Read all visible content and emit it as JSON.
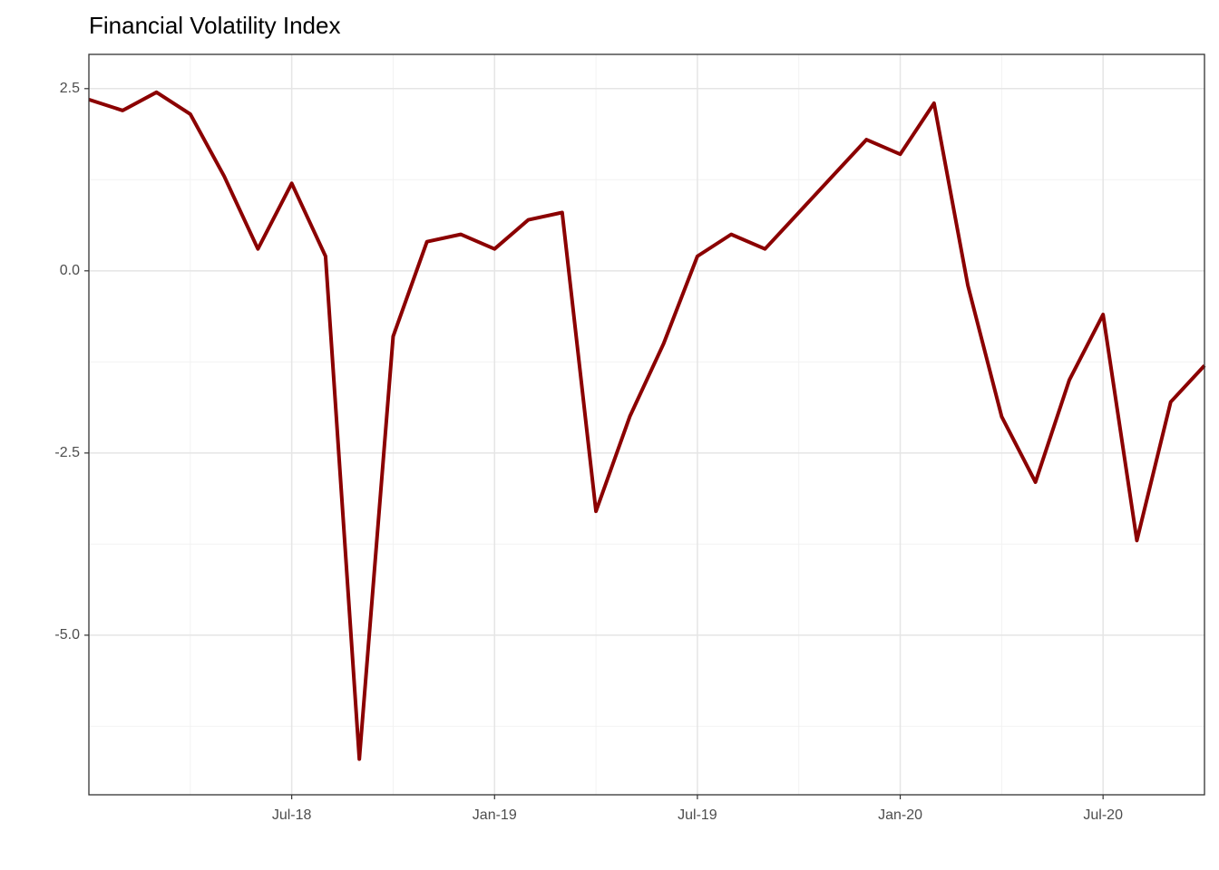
{
  "chart_data": {
    "type": "line",
    "title": "Financial Volatility Index",
    "x": [
      "2018-01",
      "2018-02",
      "2018-03",
      "2018-04",
      "2018-05",
      "2018-06",
      "2018-07",
      "2018-08",
      "2018-09",
      "2018-10",
      "2018-11",
      "2018-12",
      "2019-01",
      "2019-02",
      "2019-03",
      "2019-04",
      "2019-05",
      "2019-06",
      "2019-07",
      "2019-08",
      "2019-09",
      "2019-10",
      "2019-11",
      "2019-12",
      "2020-01",
      "2020-02",
      "2020-03",
      "2020-04",
      "2020-05",
      "2020-06",
      "2020-07",
      "2020-08",
      "2020-09",
      "2020-10"
    ],
    "values": [
      2.35,
      2.2,
      2.45,
      2.15,
      1.3,
      0.3,
      1.2,
      0.2,
      -6.7,
      -0.9,
      0.4,
      0.5,
      0.3,
      0.7,
      0.8,
      -3.3,
      -2.0,
      -1.0,
      0.2,
      0.5,
      0.3,
      0.8,
      1.3,
      1.8,
      1.6,
      2.3,
      -0.2,
      -2.0,
      -2.9,
      -1.5,
      -0.6,
      -3.7,
      -1.8,
      -1.3
    ],
    "color": "#8b0000",
    "xlim": [
      "2018-01",
      "2020-10"
    ],
    "xticks": [
      {
        "value": "2018-07",
        "label": "Jul-18"
      },
      {
        "value": "2019-01",
        "label": "Jan-19"
      },
      {
        "value": "2019-07",
        "label": "Jul-19"
      },
      {
        "value": "2020-01",
        "label": "Jan-20"
      },
      {
        "value": "2020-07",
        "label": "Jul-20"
      }
    ],
    "x_minor_grid": [
      "2018-04",
      "2018-10",
      "2019-04",
      "2019-10",
      "2020-04"
    ],
    "ylim": [
      -7.19,
      2.97
    ],
    "yticks": [
      {
        "value": 2.5,
        "label": "2.5"
      },
      {
        "value": 0,
        "label": "0.0"
      },
      {
        "value": -2.5,
        "label": "-2.5"
      },
      {
        "value": -5,
        "label": "-5.0"
      }
    ],
    "y_minor_grid": [
      1.25,
      -1.25,
      -3.75,
      -6.25
    ],
    "grid": true
  }
}
